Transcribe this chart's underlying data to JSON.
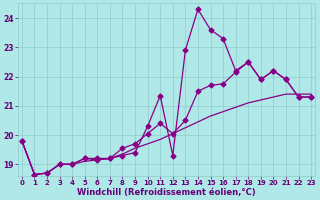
{
  "xlabel": "Windchill (Refroidissement éolien,°C)",
  "bg_color": "#b0e8e8",
  "line_color": "#880088",
  "marker": "D",
  "markersize": 2.5,
  "linewidth": 0.9,
  "xlim": [
    -0.3,
    23.3
  ],
  "ylim": [
    18.6,
    24.5
  ],
  "yticks": [
    19,
    20,
    21,
    22,
    23,
    24
  ],
  "xticks": [
    0,
    1,
    2,
    3,
    4,
    5,
    6,
    7,
    8,
    9,
    10,
    11,
    12,
    13,
    14,
    15,
    16,
    17,
    18,
    19,
    20,
    21,
    22,
    23
  ],
  "x_data": [
    0,
    1,
    2,
    3,
    4,
    5,
    6,
    7,
    8,
    9,
    10,
    11,
    12,
    13,
    14,
    15,
    16,
    17,
    18,
    19,
    20,
    21,
    22,
    23
  ],
  "y_line1": [
    19.8,
    18.65,
    18.7,
    19.0,
    19.0,
    19.2,
    19.2,
    19.2,
    19.3,
    19.4,
    20.3,
    21.35,
    19.3,
    22.9,
    24.3,
    23.6,
    23.3,
    22.2,
    22.5,
    21.9,
    22.2,
    21.9,
    21.3,
    21.3
  ],
  "y_line2": [
    19.8,
    18.65,
    18.7,
    19.0,
    19.0,
    19.2,
    19.15,
    19.2,
    19.55,
    19.7,
    20.05,
    20.4,
    20.05,
    20.5,
    21.5,
    21.7,
    21.75,
    22.15,
    22.5,
    21.9,
    22.2,
    21.9,
    21.3,
    21.3
  ],
  "y_line3": [
    19.8,
    18.65,
    18.7,
    19.0,
    19.0,
    19.1,
    19.15,
    19.2,
    19.35,
    19.55,
    19.7,
    19.85,
    20.05,
    20.25,
    20.45,
    20.65,
    20.8,
    20.95,
    21.1,
    21.2,
    21.3,
    21.4,
    21.4,
    21.4
  ],
  "grid_color": "#90cccc",
  "tick_fontsize": 5.0,
  "label_fontsize": 6.0,
  "font_color": "#660077"
}
